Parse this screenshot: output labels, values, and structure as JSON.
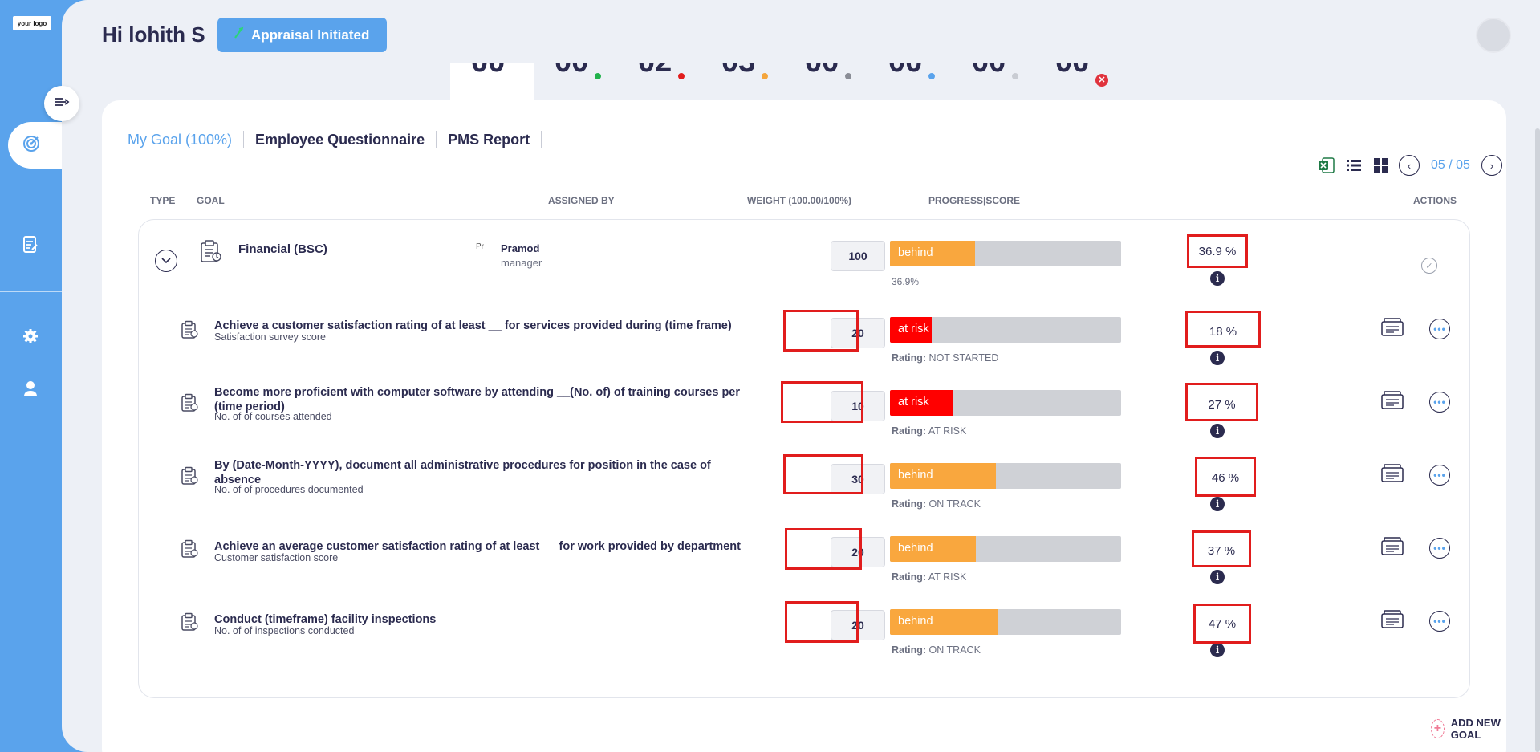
{
  "app": {
    "logo_text": "your logo"
  },
  "header": {
    "greeting": "Hi lohith S",
    "status_label": "Appraisal Initiated"
  },
  "stats": [
    {
      "value": "00",
      "dot_color": null,
      "active": true
    },
    {
      "value": "00",
      "dot_color": "#22b24c"
    },
    {
      "value": "02",
      "dot_color": "#e11d1d"
    },
    {
      "value": "03",
      "dot_color": "#f4a53c"
    },
    {
      "value": "00",
      "dot_color": "#8a8d96"
    },
    {
      "value": "00",
      "dot_color": "#5aa3ec"
    },
    {
      "value": "00",
      "dot_color": "#c9ccd3"
    },
    {
      "value": "00",
      "dot_color": null,
      "cancel": true
    }
  ],
  "tabs": [
    {
      "label": "My Goal (100%)",
      "active": true
    },
    {
      "label": "Employee Questionnaire"
    },
    {
      "label": "PMS Report"
    }
  ],
  "pager": {
    "text": "05 / 05"
  },
  "table_headers": {
    "type": "TYPE",
    "goal": "GOAL",
    "assigned_by": "ASSIGNED BY",
    "weight": "WEIGHT (100.00/100%)",
    "progress": "PROGRESS|SCORE",
    "actions": "ACTIONS"
  },
  "group": {
    "title": "Financial (BSC)",
    "assignee_name": "Pramod",
    "assignee_role": "manager",
    "assignee_img_alt": "Pr",
    "weight": "100",
    "bar_label": "behind",
    "progress": 36.9,
    "progress_text": "36.9%",
    "score": "36.9  %"
  },
  "goals": [
    {
      "title": "Achieve a customer satisfaction rating of at least __ for services provided during (time frame)",
      "subtitle": "Satisfaction survey score",
      "weight": "20",
      "bar_label": "at risk",
      "status": "risk",
      "progress": 18,
      "rating_label": "Rating:",
      "rating": "NOT STARTED",
      "score": "18  %"
    },
    {
      "title": "Become more proficient with computer software by attending __(No. of) of training courses per (time period)",
      "subtitle": "No. of of courses attended",
      "weight": "10",
      "bar_label": "at risk",
      "status": "risk",
      "progress": 27,
      "rating_label": "Rating:",
      "rating": "AT RISK",
      "score": "27  %"
    },
    {
      "title": "By (Date-Month-YYYY), document all administrative procedures for position in the case of absence",
      "subtitle": "No. of of procedures documented",
      "weight": "30",
      "bar_label": "behind",
      "status": "behind",
      "progress": 46,
      "rating_label": "Rating:",
      "rating": "ON TRACK",
      "score": "46  %"
    },
    {
      "title": "Achieve an average customer satisfaction rating of at least __ for work provided by department",
      "subtitle": "Customer satisfaction score",
      "weight": "20",
      "bar_label": "behind",
      "status": "behind",
      "progress": 37,
      "rating_label": "Rating:",
      "rating": "AT RISK",
      "score": "37  %"
    },
    {
      "title": "Conduct (timeframe) facility inspections",
      "subtitle": "No. of of inspections conducted",
      "weight": "20",
      "bar_label": "behind",
      "status": "behind",
      "progress": 47,
      "rating_label": "Rating:",
      "rating": "ON TRACK",
      "score": "47  %"
    }
  ],
  "add_goal_label": "ADD NEW GOAL",
  "colors": {
    "accent": "#5aa3ec",
    "behind": "#f9a73e",
    "risk": "#ff0000",
    "highlight_frame": "#e11d1d"
  }
}
